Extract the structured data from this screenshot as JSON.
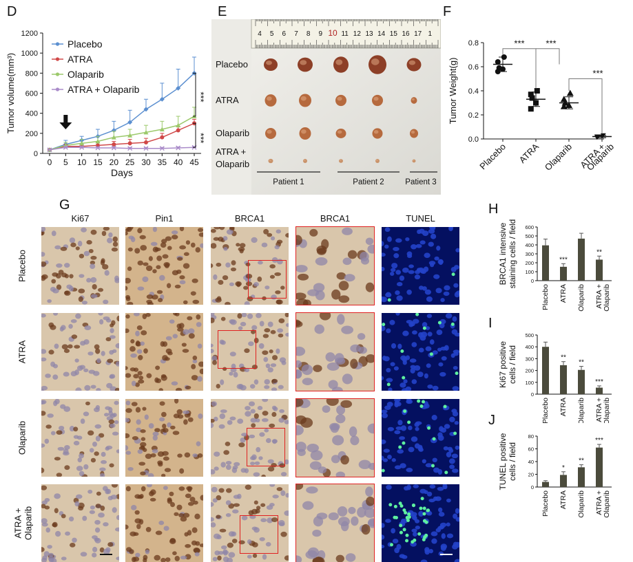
{
  "panels": {
    "D": {
      "label": "D",
      "chart_data": {
        "type": "line",
        "xlabel": "Days",
        "ylabel": "Tumor volume(mm³)",
        "ylim": [
          0,
          1200
        ],
        "xlim": [
          0,
          45
        ],
        "x": [
          0,
          5,
          10,
          15,
          20,
          25,
          30,
          35,
          40,
          45
        ],
        "x_ticks": [
          0,
          5,
          10,
          15,
          20,
          25,
          30,
          35,
          40,
          45
        ],
        "y_ticks": [
          0,
          200,
          400,
          600,
          800,
          1000,
          1200
        ],
        "legend_position": "top-left",
        "series": [
          {
            "name": "Placebo",
            "color": "#5b8fd0",
            "marker": "diamond",
            "values": [
              35,
              90,
              130,
              170,
              230,
              310,
              440,
              540,
              650,
              800
            ],
            "errors": [
              10,
              40,
              40,
              70,
              90,
              120,
              100,
              160,
              190,
              160
            ]
          },
          {
            "name": "ATRA",
            "color": "#d04848",
            "marker": "circle",
            "values": [
              35,
              70,
              70,
              80,
              90,
              100,
              110,
              160,
              230,
              300
            ],
            "errors": [
              8,
              20,
              20,
              30,
              30,
              40,
              40,
              40,
              40,
              40
            ]
          },
          {
            "name": "Olaparib",
            "color": "#9cc96b",
            "marker": "triangle",
            "values": [
              35,
              80,
              100,
              120,
              160,
              180,
              210,
              240,
              280,
              370
            ],
            "errors": [
              8,
              30,
              40,
              50,
              60,
              60,
              70,
              80,
              90,
              90
            ]
          },
          {
            "name": "ATRA + Olaparib",
            "color": "#a98bc9",
            "marker": "x",
            "values": [
              35,
              60,
              60,
              55,
              55,
              50,
              50,
              50,
              55,
              60
            ],
            "errors": [
              5,
              10,
              10,
              10,
              10,
              10,
              10,
              10,
              10,
              10
            ]
          }
        ],
        "annotations": [
          "***",
          "***"
        ]
      }
    },
    "E": {
      "label": "E",
      "ruler_numbers": [
        "4",
        "5",
        "6",
        "7",
        "8",
        "9",
        "10",
        "11",
        "12",
        "13",
        "14",
        "15",
        "16",
        "17",
        "1"
      ],
      "rows": [
        "Placebo",
        "ATRA",
        "Olaparib",
        "ATRA +\nOlaparib"
      ],
      "row_labels": [
        "Placebo",
        "ATRA",
        "Olaparib",
        "ATRA +",
        "Olaparib"
      ],
      "patients": [
        "Patient 1",
        "Patient 2",
        "Patient 3"
      ],
      "tumor_sizes": [
        [
          20,
          22,
          22,
          26,
          21
        ],
        [
          17,
          18,
          16,
          16,
          9
        ],
        [
          16,
          17,
          15,
          15,
          12
        ],
        [
          7,
          6,
          6,
          6,
          5
        ]
      ]
    },
    "F": {
      "label": "F",
      "chart_data": {
        "type": "scatter",
        "ylabel": "Tumor Weight(g)",
        "ylim": [
          0,
          0.8
        ],
        "y_ticks": [
          "0.0",
          "0.2",
          "0.4",
          "0.6",
          "0.8"
        ],
        "categories": [
          "Placebo",
          "ATRA",
          "Olaparib",
          "ATRA +\nOlaparib"
        ],
        "category_labels": [
          [
            "Placebo"
          ],
          [
            "ATRA"
          ],
          [
            "Olaparib"
          ],
          [
            "ATRA +",
            "Olaparib"
          ]
        ],
        "markers": [
          "circle",
          "square",
          "triangle",
          "triangle-down"
        ],
        "points": [
          [
            0.68,
            0.64,
            0.59,
            0.58,
            0.56
          ],
          [
            0.4,
            0.37,
            0.34,
            0.3,
            0.25
          ],
          [
            0.38,
            0.33,
            0.3,
            0.28,
            0.27
          ],
          [
            0.03,
            0.02,
            0.02,
            0.02,
            0.01
          ]
        ],
        "means": [
          0.62,
          0.33,
          0.3,
          0.02
        ],
        "sd": [
          0.06,
          0.06,
          0.05,
          0.01
        ],
        "significance": [
          "***",
          "***",
          "***"
        ]
      }
    },
    "G": {
      "label": "G",
      "columns": [
        "Ki67",
        "Pin1",
        "BRCA1",
        "BRCA1",
        "TUNEL"
      ],
      "rows": [
        "Placebo",
        "ATRA",
        "Olaparib",
        "ATRA +\nOlaparib"
      ],
      "row_labels": [
        [
          "Placebo"
        ],
        [
          "ATRA"
        ],
        [
          "Olaparib"
        ],
        [
          "ATRA +",
          "Olaparib"
        ]
      ]
    },
    "H": {
      "label": "H",
      "chart_data": {
        "type": "bar",
        "ylabel": "BRCA1 intensive\nstaining cells / field",
        "ylabel_lines": [
          "BRCA1 intensive",
          "staining cells / field"
        ],
        "ylim": [
          0,
          600
        ],
        "y_ticks": [
          0,
          100,
          200,
          300,
          400,
          500,
          600
        ],
        "categories": [
          "Placebo",
          "ATRA",
          "Olaparib",
          "ATRA +\nOlaparib"
        ],
        "category_labels": [
          [
            "Placebo"
          ],
          [
            "ATRA"
          ],
          [
            "Olaparib"
          ],
          [
            "ATRA +",
            "Olaparib"
          ]
        ],
        "values": [
          395,
          155,
          470,
          235
        ],
        "errors": [
          70,
          35,
          60,
          40
        ],
        "significance": [
          "",
          "***",
          "",
          "**"
        ]
      }
    },
    "I": {
      "label": "I",
      "chart_data": {
        "type": "bar",
        "ylabel": "Ki67 positive\ncells / field",
        "ylabel_lines": [
          "Ki67 positive",
          "cells / field"
        ],
        "ylim": [
          0,
          500
        ],
        "y_ticks": [
          0,
          100,
          200,
          300,
          400,
          500
        ],
        "categories": [
          "Placebo",
          "ATRA",
          "Olaparib",
          "ATRA +\nOlaparib"
        ],
        "category_labels": [
          [
            "Placebo"
          ],
          [
            "ATRA"
          ],
          [
            "Olaparib"
          ],
          [
            "ATRA +",
            "Olaparib"
          ]
        ],
        "values": [
          400,
          245,
          205,
          55
        ],
        "errors": [
          40,
          30,
          30,
          15
        ],
        "significance": [
          "",
          "**",
          "**",
          "***"
        ]
      }
    },
    "J": {
      "label": "J",
      "chart_data": {
        "type": "bar",
        "ylabel": "TUNEL positive\ncells / field",
        "ylabel_lines": [
          "TUNEL positive",
          "cells / field"
        ],
        "ylim": [
          0,
          80
        ],
        "y_ticks": [
          0,
          20,
          40,
          60,
          80
        ],
        "categories": [
          "Placebo",
          "ATRA",
          "Olaparib",
          "ATRA +\nOlaparib"
        ],
        "category_labels": [
          [
            "Placebo"
          ],
          [
            "ATRA"
          ],
          [
            "Olaparib"
          ],
          [
            "ATRA +",
            "Olaparib"
          ]
        ],
        "values": [
          8,
          19,
          31,
          62
        ],
        "errors": [
          2,
          5,
          4,
          5
        ],
        "significance": [
          "",
          "*",
          "**",
          "***"
        ]
      }
    }
  },
  "colors": {
    "bar": "#4b4b3c",
    "ihc_bg": "#d9c6ab",
    "ihc_nucleus": "#7a4a2a",
    "tunel_bg": "#041060",
    "tunel_nucleus": "#2342c9",
    "tunel_positive": "#5ef0a0",
    "tumor": "#9b4a2e"
  }
}
